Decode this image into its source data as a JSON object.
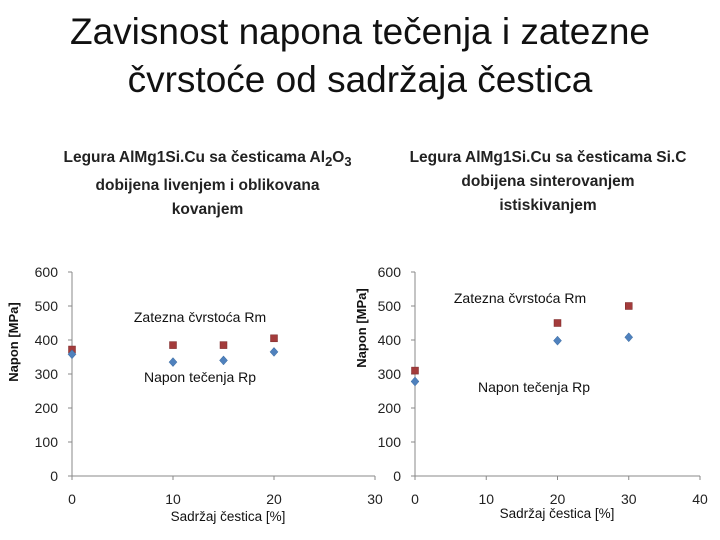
{
  "title": {
    "line1": "Zavisnost napona tečenja i zatezne",
    "line2": "čvrstoće od sadržaja čestica"
  },
  "panel_titles": {
    "left": {
      "line1_pre": "Legura AlMg1Si.Cu sa česticama Al",
      "line1_sub1": "2",
      "line1_mid": "O",
      "line1_sub2": "3",
      "line2": "dobijena livenjem i oblikovana",
      "line3": "kovanjem"
    },
    "right": {
      "line1": "Legura AlMg1Si.Cu sa česticama Si.C",
      "line2": "dobijena sinterovanjem",
      "line3": "istiskivanjem"
    }
  },
  "colors": {
    "rm": "#a33b3b",
    "rp": "#4f81bd",
    "axis": "#888888"
  },
  "chart_data": [
    {
      "type": "scatter",
      "xlabel": "Sadržaj čestica [%]",
      "ylabel": "Napon [MPa]",
      "xlim": [
        0,
        30
      ],
      "ylim": [
        0,
        600
      ],
      "xticks": [
        "0",
        "10",
        "20",
        "30"
      ],
      "yticks": [
        "0",
        "100",
        "200",
        "300",
        "400",
        "500",
        "600"
      ],
      "annotations": {
        "rm": "Zatezna čvrstoća Rm",
        "rp": "Napon tečenja Rp"
      },
      "series": [
        {
          "name": "Zatezna čvrstoća Rm",
          "marker": "square",
          "x": [
            0,
            10,
            15,
            20
          ],
          "y": [
            372,
            385,
            385,
            405
          ]
        },
        {
          "name": "Napon tečenja Rp",
          "marker": "diamond",
          "x": [
            0,
            10,
            15,
            20
          ],
          "y": [
            358,
            335,
            340,
            365
          ]
        }
      ]
    },
    {
      "type": "scatter",
      "xlabel": "Sadržaj čestica [%]",
      "ylabel": "Napon [MPa]",
      "xlim": [
        0,
        40
      ],
      "ylim": [
        0,
        600
      ],
      "xticks": [
        "0",
        "10",
        "20",
        "30",
        "40"
      ],
      "yticks": [
        "0",
        "100",
        "200",
        "300",
        "400",
        "500",
        "600"
      ],
      "annotations": {
        "rm": "Zatezna čvrstoća Rm",
        "rp": "Napon tečenja Rp"
      },
      "series": [
        {
          "name": "Zatezna čvrstoća Rm",
          "marker": "square",
          "x": [
            0,
            20,
            30
          ],
          "y": [
            310,
            450,
            500
          ]
        },
        {
          "name": "Napon tečenja Rp",
          "marker": "diamond",
          "x": [
            0,
            20,
            30
          ],
          "y": [
            278,
            398,
            408
          ]
        }
      ]
    }
  ]
}
